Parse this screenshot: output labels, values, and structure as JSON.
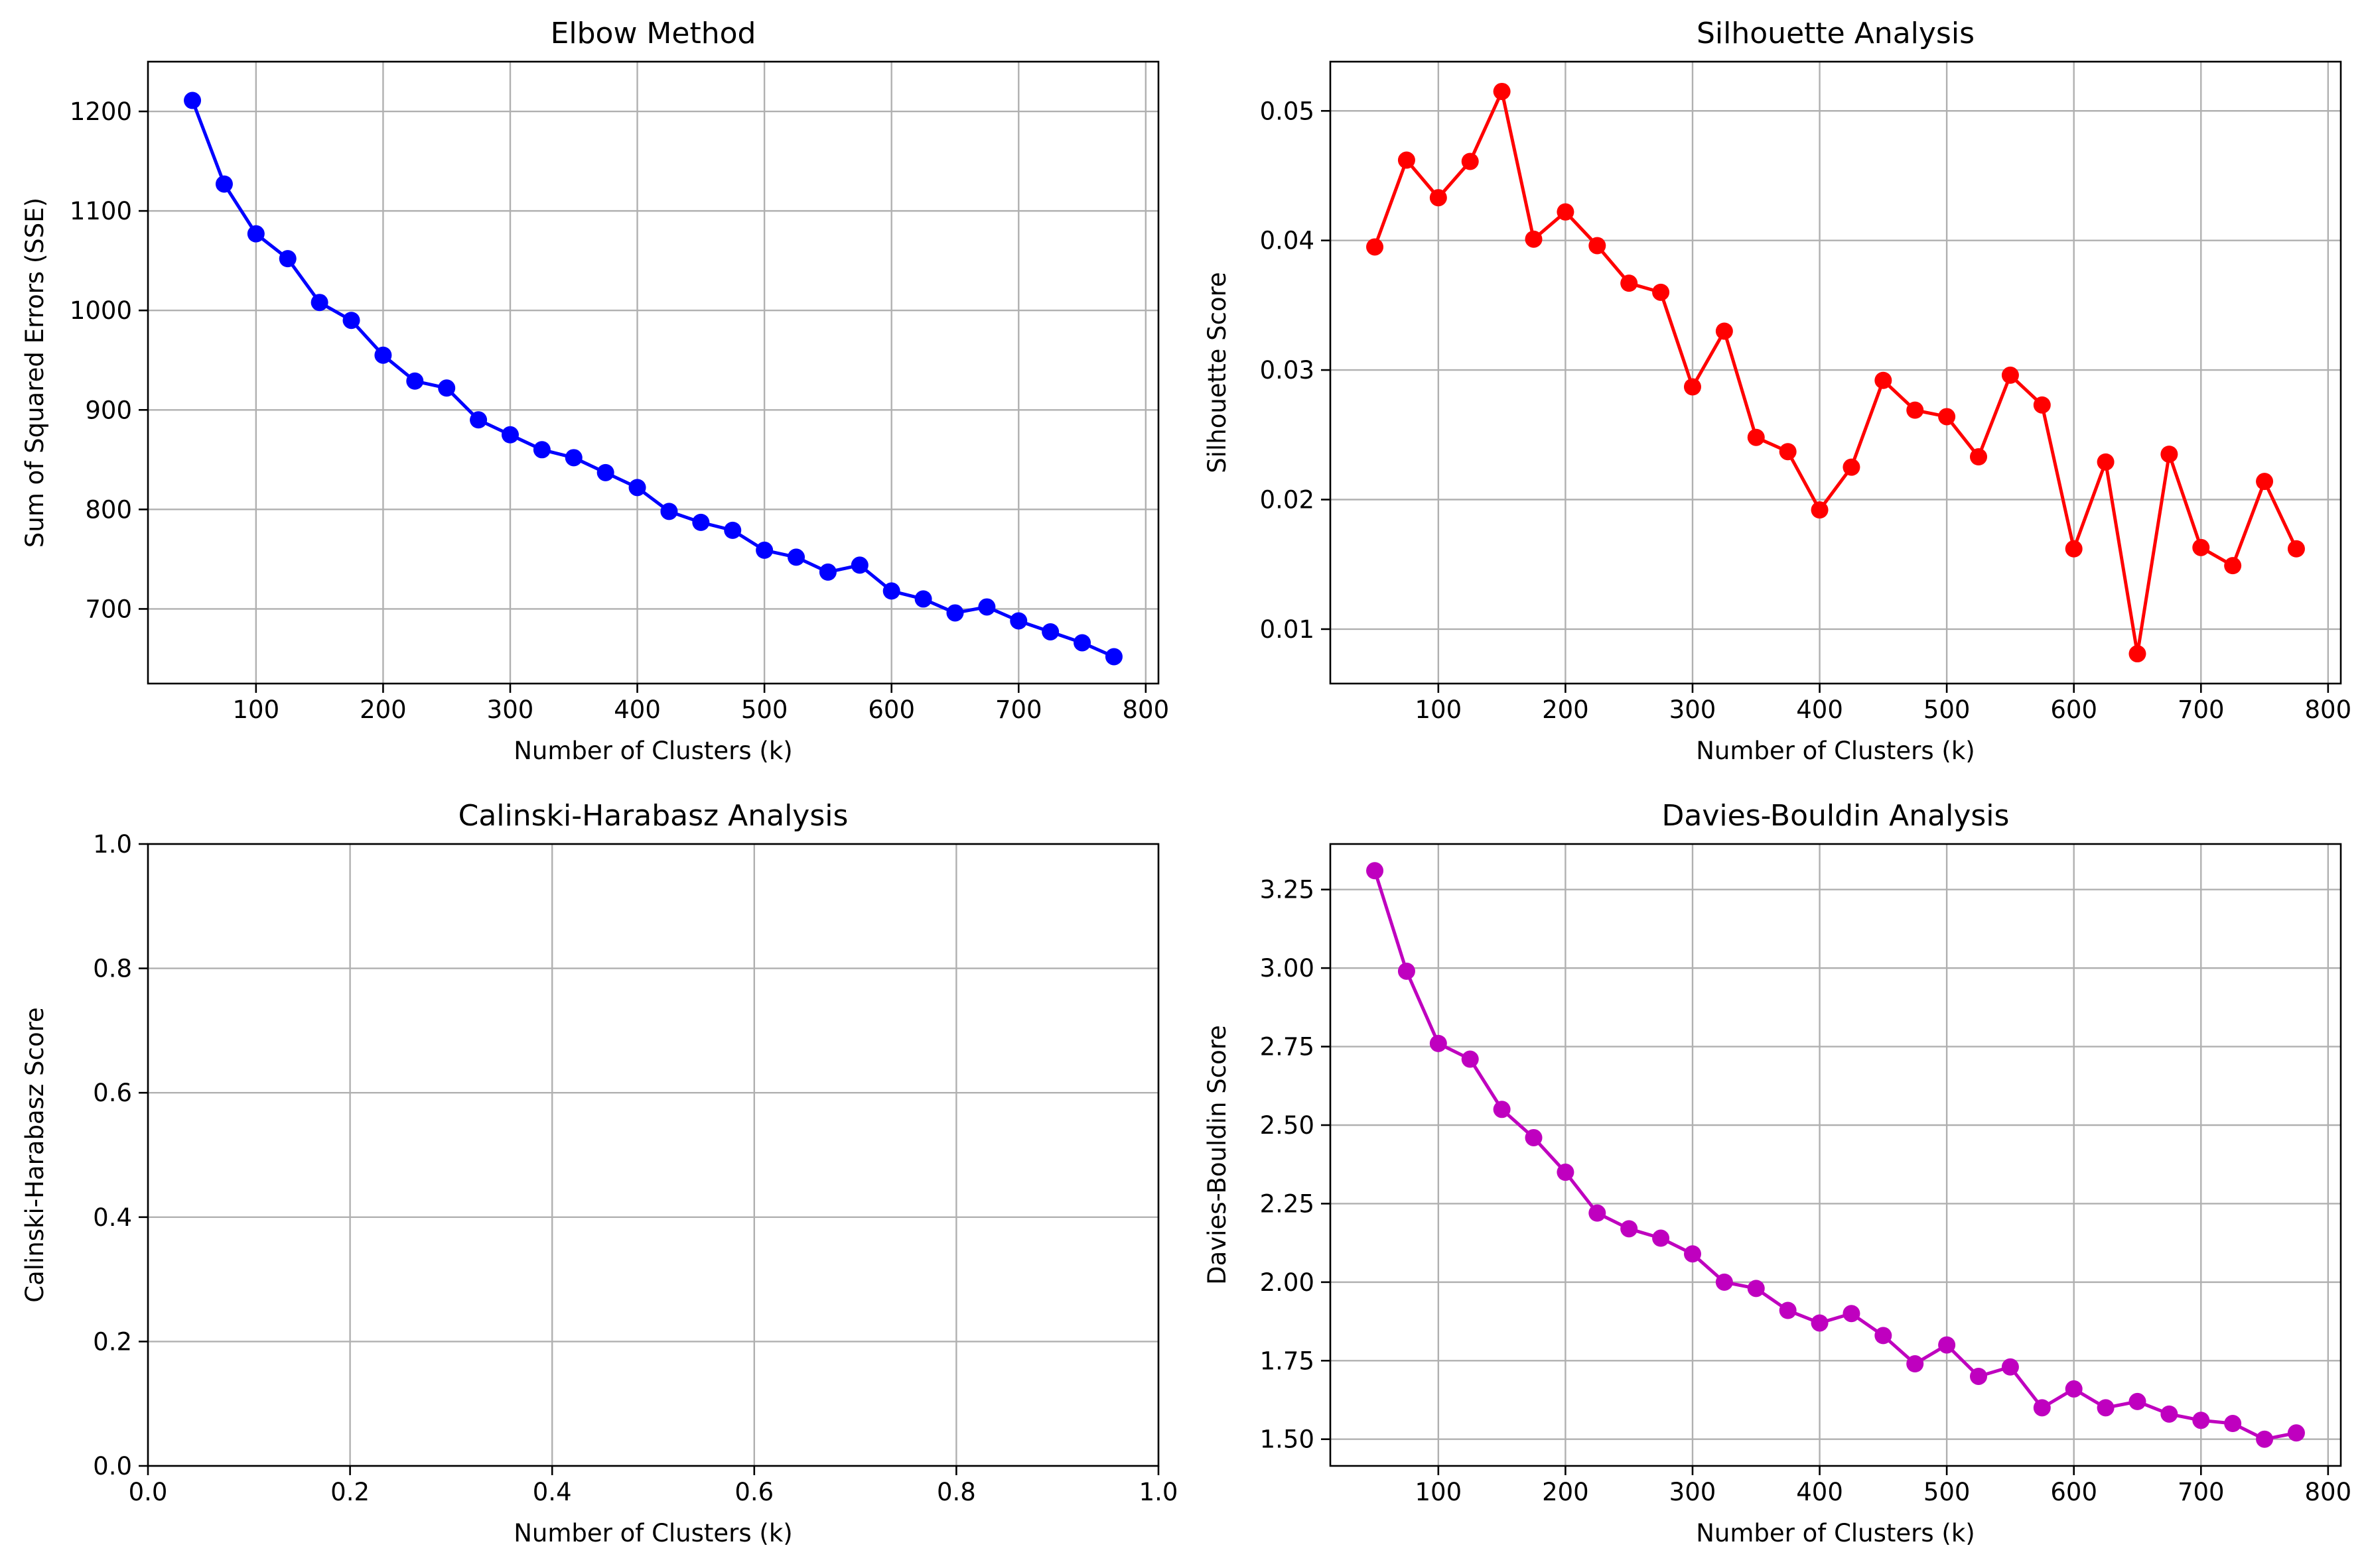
{
  "chart_data": [
    {
      "type": "line",
      "title": "Elbow Method",
      "xlabel": "Number of Clusters (k)",
      "ylabel": "Sum of Squared Errors (SSE)",
      "color": "#0000ff",
      "xlim": [
        15,
        810
      ],
      "ylim": [
        625,
        1250
      ],
      "xticks": [
        100,
        200,
        300,
        400,
        500,
        600,
        700,
        800
      ],
      "yticks": [
        700,
        800,
        900,
        1000,
        1100,
        1200
      ],
      "xtick_labels": [
        "100",
        "200",
        "300",
        "400",
        "500",
        "600",
        "700",
        "800"
      ],
      "ytick_labels": [
        "700",
        "800",
        "900",
        "1000",
        "1100",
        "1200"
      ],
      "grid": true,
      "x": [
        50,
        75,
        100,
        125,
        150,
        175,
        200,
        225,
        250,
        275,
        300,
        325,
        350,
        375,
        400,
        425,
        450,
        475,
        500,
        525,
        550,
        575,
        600,
        625,
        650,
        675,
        700,
        725,
        750,
        775
      ],
      "y": [
        1211,
        1127,
        1077,
        1052,
        1008,
        990,
        955,
        929,
        922,
        890,
        875,
        860,
        852,
        837,
        822,
        798,
        787,
        779,
        759,
        752,
        737,
        744,
        718,
        710,
        696,
        702,
        688,
        677,
        666,
        652
      ]
    },
    {
      "type": "line",
      "title": "Silhouette Analysis",
      "xlabel": "Number of Clusters (k)",
      "ylabel": "Silhouette Score",
      "color": "#ff0000",
      "xlim": [
        15,
        810
      ],
      "ylim": [
        0.0058,
        0.0538
      ],
      "xticks": [
        100,
        200,
        300,
        400,
        500,
        600,
        700,
        800
      ],
      "yticks": [
        0.01,
        0.02,
        0.03,
        0.04,
        0.05
      ],
      "xtick_labels": [
        "100",
        "200",
        "300",
        "400",
        "500",
        "600",
        "700",
        "800"
      ],
      "ytick_labels": [
        "0.01",
        "0.02",
        "0.03",
        "0.04",
        "0.05"
      ],
      "grid": true,
      "x": [
        50,
        75,
        100,
        125,
        150,
        175,
        200,
        225,
        250,
        275,
        300,
        325,
        350,
        375,
        400,
        425,
        450,
        475,
        500,
        525,
        550,
        575,
        600,
        625,
        650,
        675,
        700,
        725,
        750,
        775
      ],
      "y": [
        0.0395,
        0.0462,
        0.0433,
        0.0461,
        0.0515,
        0.0401,
        0.0422,
        0.0396,
        0.0367,
        0.036,
        0.0287,
        0.033,
        0.0248,
        0.0237,
        0.0192,
        0.0225,
        0.0292,
        0.0269,
        0.0264,
        0.0233,
        0.0296,
        0.0273,
        0.0162,
        0.0229,
        0.0081,
        0.0235,
        0.0163,
        0.0149,
        0.0214,
        0.0162
      ]
    },
    {
      "type": "line",
      "title": "Calinski-Harabasz Analysis",
      "xlabel": "Number of Clusters (k)",
      "ylabel": "Calinski-Harabasz Score",
      "color": "#00bfbf",
      "xlim": [
        0,
        1
      ],
      "ylim": [
        0,
        1
      ],
      "xticks": [
        0,
        0.2,
        0.4,
        0.6,
        0.8,
        1.0
      ],
      "yticks": [
        0,
        0.2,
        0.4,
        0.6,
        0.8,
        1.0
      ],
      "xtick_labels": [
        "0.0",
        "0.2",
        "0.4",
        "0.6",
        "0.8",
        "1.0"
      ],
      "ytick_labels": [
        "0.0",
        "0.2",
        "0.4",
        "0.6",
        "0.8",
        "1.0"
      ],
      "grid": true,
      "x": [],
      "y": []
    },
    {
      "type": "line",
      "title": "Davies-Bouldin Analysis",
      "xlabel": "Number of Clusters (k)",
      "ylabel": "Davies-Bouldin Score",
      "color": "#bf00bf",
      "xlim": [
        15,
        810
      ],
      "ylim": [
        1.415,
        3.395
      ],
      "xticks": [
        100,
        200,
        300,
        400,
        500,
        600,
        700,
        800
      ],
      "yticks": [
        1.5,
        1.75,
        2.0,
        2.25,
        2.5,
        2.75,
        3.0,
        3.25
      ],
      "xtick_labels": [
        "100",
        "200",
        "300",
        "400",
        "500",
        "600",
        "700",
        "800"
      ],
      "ytick_labels": [
        "1.50",
        "1.75",
        "2.00",
        "2.25",
        "2.50",
        "2.75",
        "3.00",
        "3.25"
      ],
      "grid": true,
      "x": [
        50,
        75,
        100,
        125,
        150,
        175,
        200,
        225,
        250,
        275,
        300,
        325,
        350,
        375,
        400,
        425,
        450,
        475,
        500,
        525,
        550,
        575,
        600,
        625,
        650,
        675,
        700,
        725,
        750,
        775
      ],
      "y": [
        3.31,
        2.99,
        2.76,
        2.71,
        2.55,
        2.46,
        2.35,
        2.22,
        2.17,
        2.14,
        2.09,
        2.0,
        1.98,
        1.91,
        1.87,
        1.9,
        1.83,
        1.74,
        1.8,
        1.7,
        1.73,
        1.6,
        1.66,
        1.6,
        1.62,
        1.58,
        1.56,
        1.55,
        1.5,
        1.52
      ]
    }
  ]
}
